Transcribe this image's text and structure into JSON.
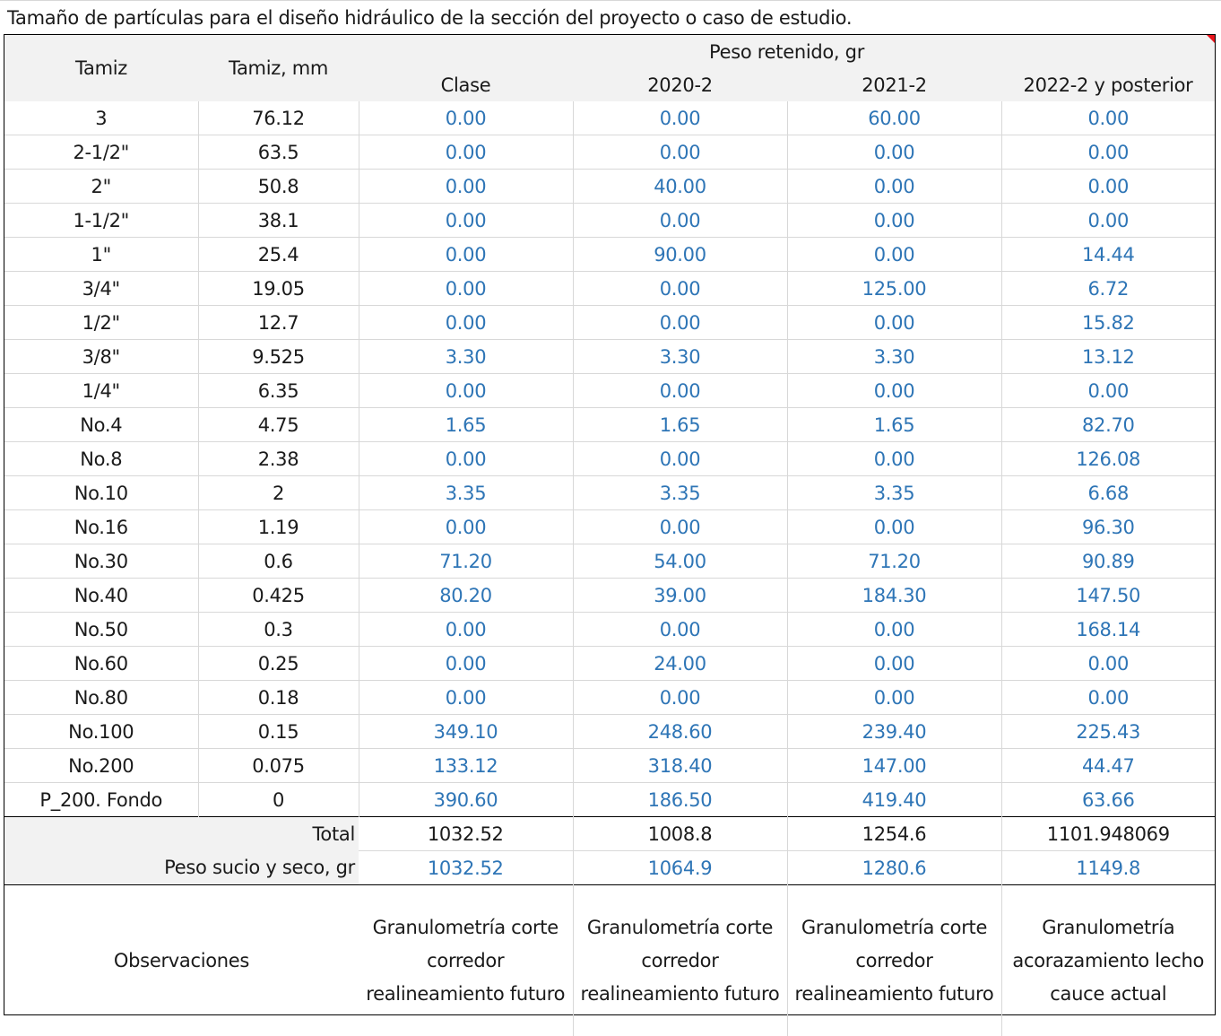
{
  "caption": "Tamaño de partículas para el diseño hidráulico de la sección del proyecto o caso de estudio.",
  "header": {
    "tamiz": "Tamiz",
    "tamiz_mm": "Tamiz, mm",
    "group": "Peso retenido, gr",
    "columns": [
      "Clase",
      "2020-2",
      "2021-2",
      "2022-2 y posterior"
    ]
  },
  "rows": [
    [
      "3",
      "76.12",
      "0.00",
      "0.00",
      "60.00",
      "0.00"
    ],
    [
      "2-1/2\"",
      "63.5",
      "0.00",
      "0.00",
      "0.00",
      "0.00"
    ],
    [
      "2\"",
      "50.8",
      "0.00",
      "40.00",
      "0.00",
      "0.00"
    ],
    [
      "1-1/2\"",
      "38.1",
      "0.00",
      "0.00",
      "0.00",
      "0.00"
    ],
    [
      "1\"",
      "25.4",
      "0.00",
      "90.00",
      "0.00",
      "14.44"
    ],
    [
      "3/4\"",
      "19.05",
      "0.00",
      "0.00",
      "125.00",
      "6.72"
    ],
    [
      "1/2\"",
      "12.7",
      "0.00",
      "0.00",
      "0.00",
      "15.82"
    ],
    [
      "3/8\"",
      "9.525",
      "3.30",
      "3.30",
      "3.30",
      "13.12"
    ],
    [
      "1/4\"",
      "6.35",
      "0.00",
      "0.00",
      "0.00",
      "0.00"
    ],
    [
      "No.4",
      "4.75",
      "1.65",
      "1.65",
      "1.65",
      "82.70"
    ],
    [
      "No.8",
      "2.38",
      "0.00",
      "0.00",
      "0.00",
      "126.08"
    ],
    [
      "No.10",
      "2",
      "3.35",
      "3.35",
      "3.35",
      "6.68"
    ],
    [
      "No.16",
      "1.19",
      "0.00",
      "0.00",
      "0.00",
      "96.30"
    ],
    [
      "No.30",
      "0.6",
      "71.20",
      "54.00",
      "71.20",
      "90.89"
    ],
    [
      "No.40",
      "0.425",
      "80.20",
      "39.00",
      "184.30",
      "147.50"
    ],
    [
      "No.50",
      "0.3",
      "0.00",
      "0.00",
      "0.00",
      "168.14"
    ],
    [
      "No.60",
      "0.25",
      "0.00",
      "24.00",
      "0.00",
      "0.00"
    ],
    [
      "No.80",
      "0.18",
      "0.00",
      "0.00",
      "0.00",
      "0.00"
    ],
    [
      "No.100",
      "0.15",
      "349.10",
      "248.60",
      "239.40",
      "225.43"
    ],
    [
      "No.200",
      "0.075",
      "133.12",
      "318.40",
      "147.00",
      "44.47"
    ],
    [
      "P_200. Fondo",
      "0",
      "390.60",
      "186.50",
      "419.40",
      "63.66"
    ]
  ],
  "total": {
    "label": "Total",
    "values": [
      "1032.52",
      "1008.8",
      "1254.6",
      "1101.948069"
    ]
  },
  "peso_sucio": {
    "label": "Peso sucio y seco, gr",
    "values": [
      "1032.52",
      "1064.9",
      "1280.6",
      "1149.8"
    ]
  },
  "observaciones": {
    "label": "Observaciones",
    "values": [
      "Granulometría corte corredor realineamiento futuro",
      "Granulometría corte corredor realineamiento futuro",
      "Granulometría corte corredor realineamiento futuro",
      "Granulometría acorazamiento lecho cauce actual"
    ]
  },
  "colors": {
    "input_value": "#2e75b6",
    "header_fill": "#f2f2f2",
    "gridline": "#d8d8d8",
    "comment_marker": "#e8141c"
  }
}
